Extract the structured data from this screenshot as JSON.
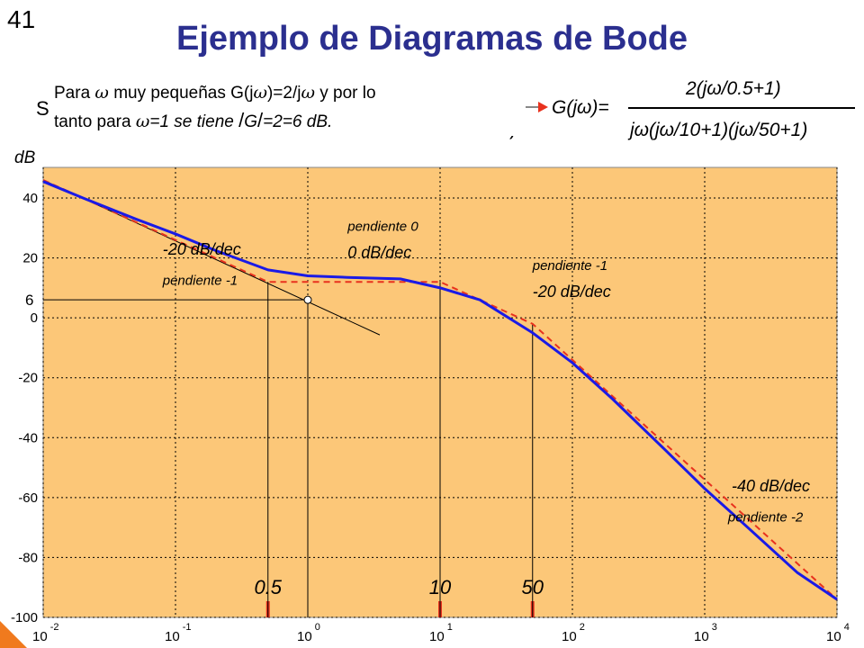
{
  "slide_number": "41",
  "title": "Ejemplo de Diagramas de Bode",
  "partially_hidden": {
    "left_fragment": "S",
    "right_fragment": ")"
  },
  "note": {
    "line1_a": "Para ",
    "line1_w": "ω",
    "line1_b": " muy pequeñas G(j",
    "line1_w2": "ω",
    "line1_c": ")=2/j",
    "line1_w3": "ω",
    "line1_d": " y por lo",
    "line2_a": "tanto para ",
    "line2_w": "ω",
    "line2_b": "=1 se tiene ",
    "line2_c": "G",
    "line2_d": "=2=6 dB."
  },
  "equation": {
    "lhs": "G(jω)=",
    "numerator": "2(jω/0.5+1)",
    "denominator": "jω(jω/10+1)(jω/50+1)"
  },
  "colors": {
    "background": "#fcc778",
    "grid": "#000000",
    "asymptote": "#e8321e",
    "actual": "#1a1ae6",
    "title": "#2b2f8f",
    "marker": "#e8321e"
  },
  "chart_data": {
    "type": "line",
    "ylabel": "dB",
    "x_scale": "log",
    "xlim": [
      0.01,
      10000
    ],
    "ylim": [
      -100,
      50
    ],
    "x_ticks": [
      {
        "value": 0.01,
        "base": "10",
        "exp": "-2"
      },
      {
        "value": 0.1,
        "base": "10",
        "exp": "-1"
      },
      {
        "value": 1,
        "base": "10",
        "exp": "0"
      },
      {
        "value": 10,
        "base": "10",
        "exp": "1"
      },
      {
        "value": 100,
        "base": "10",
        "exp": "2"
      },
      {
        "value": 1000,
        "base": "10",
        "exp": "3"
      },
      {
        "value": 10000,
        "base": "10",
        "exp": "4"
      }
    ],
    "y_ticks": [
      {
        "value": 40,
        "label": "40"
      },
      {
        "value": 20,
        "label": "20"
      },
      {
        "value": 0,
        "label": "0"
      },
      {
        "value": -20,
        "label": "-20"
      },
      {
        "value": -40,
        "label": "-40"
      },
      {
        "value": -60,
        "label": "-60"
      },
      {
        "value": -80,
        "label": "-80"
      },
      {
        "value": -100,
        "label": "-100"
      }
    ],
    "series": [
      {
        "key": "asymptotic",
        "x": [
          0.01,
          0.5,
          10,
          50,
          10000
        ],
        "y": [
          46,
          12,
          12,
          -2,
          -94
        ]
      },
      {
        "key": "actual",
        "x": [
          0.01,
          0.02,
          0.05,
          0.1,
          0.2,
          0.5,
          1,
          2,
          5,
          10,
          20,
          50,
          100,
          200,
          500,
          1000,
          2000,
          5000,
          10000
        ],
        "y": [
          45.5,
          40,
          33,
          28,
          22.5,
          16,
          14,
          13.5,
          13,
          10,
          6,
          -5,
          -15,
          -27,
          -44,
          -57,
          -69,
          -85,
          -94
        ]
      },
      {
        "key": "slope_-1_extension",
        "x": [
          0.01,
          3.5
        ],
        "y": [
          46,
          -5.7
        ]
      }
    ],
    "marked_point": {
      "x": 1,
      "y": 6,
      "label": "6"
    },
    "corner_frequencies": [
      {
        "x": 0.5,
        "label": "0.5"
      },
      {
        "x": 10,
        "label": "10"
      },
      {
        "x": 50,
        "label": "50"
      }
    ],
    "annotations": [
      {
        "key": "a1",
        "text": "-20 dB/dec",
        "x": 0.08,
        "y": 21,
        "style": "normal"
      },
      {
        "key": "a2",
        "text": "pendiente -1",
        "x": 0.08,
        "y": 11,
        "style": "small"
      },
      {
        "key": "a3",
        "text": "pendiente 0",
        "x": 2.0,
        "y": 29,
        "style": "small"
      },
      {
        "key": "a4",
        "text": "0 dB/dec",
        "x": 2.0,
        "y": 20,
        "style": "normal"
      },
      {
        "key": "a5",
        "text": "pendiente -1",
        "x": 50,
        "y": 16,
        "style": "small"
      },
      {
        "key": "a6",
        "text": "-20 dB/dec",
        "x": 50,
        "y": 7,
        "style": "normal"
      },
      {
        "key": "a7",
        "text": "-40 dB/dec",
        "x": 1600,
        "y": -58,
        "style": "normal"
      },
      {
        "key": "a8",
        "text": "pendiente -2",
        "x": 1500,
        "y": -68,
        "style": "small"
      }
    ]
  }
}
